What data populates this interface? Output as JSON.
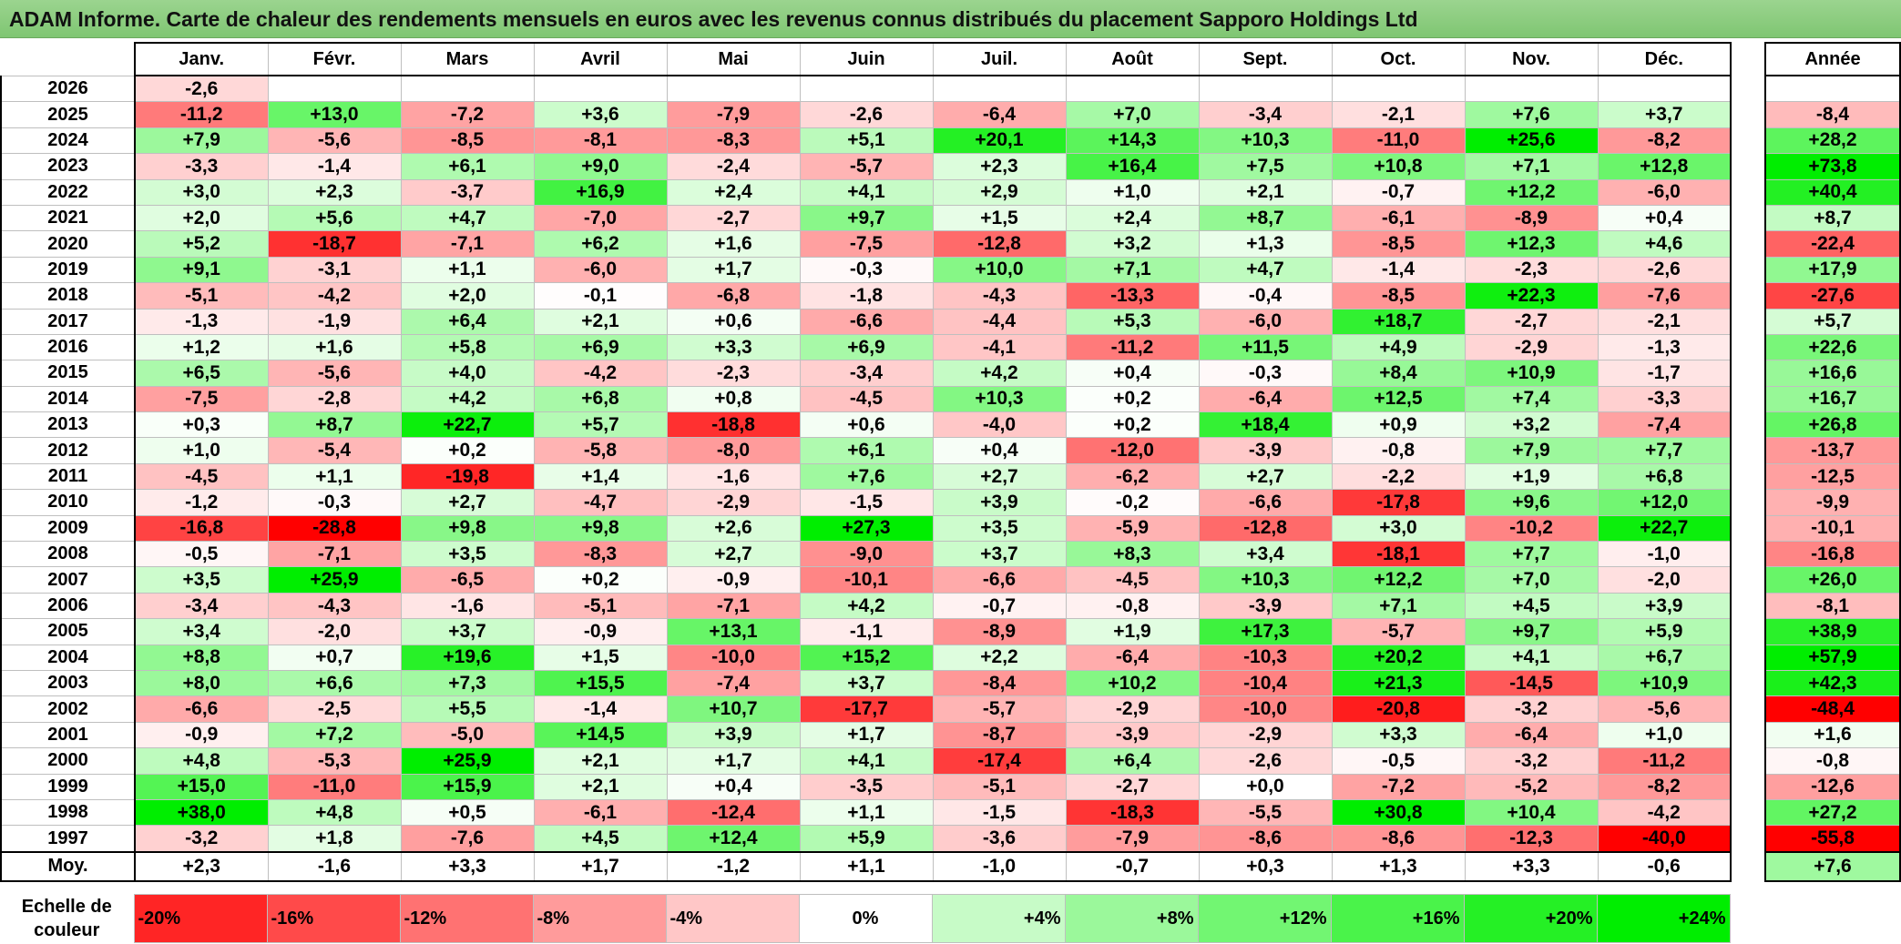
{
  "title": "ADAM Informe. Carte de chaleur des rendements mensuels en euros avec les revenus connus distribués du placement Sapporo Holdings Ltd",
  "chart_data": {
    "type": "heatmap",
    "title": "ADAM Informe. Carte de chaleur des rendements mensuels en euros avec les revenus connus distribués du placement Sapporo Holdings Ltd",
    "months": [
      "Janv.",
      "Févr.",
      "Mars",
      "Avril",
      "Mai",
      "Juin",
      "Juil.",
      "Août",
      "Sept.",
      "Oct.",
      "Nov.",
      "Déc."
    ],
    "year_header": "Année",
    "avg_label": "Moy.",
    "rows": [
      {
        "year": "2026",
        "months": [
          "-2,6",
          "",
          "",
          "",
          "",
          "",
          "",
          "",
          "",
          "",
          "",
          ""
        ],
        "annual": ""
      },
      {
        "year": "2025",
        "months": [
          "-11,2",
          "+13,0",
          "-7,2",
          "+3,6",
          "-7,9",
          "-2,6",
          "-6,4",
          "+7,0",
          "-3,4",
          "-2,1",
          "+7,6",
          "+3,7"
        ],
        "annual": "-8,4"
      },
      {
        "year": "2024",
        "months": [
          "+7,9",
          "-5,6",
          "-8,5",
          "-8,1",
          "-8,3",
          "+5,1",
          "+20,1",
          "+14,3",
          "+10,3",
          "-11,0",
          "+25,6",
          "-8,2"
        ],
        "annual": "+28,2"
      },
      {
        "year": "2023",
        "months": [
          "-3,3",
          "-1,4",
          "+6,1",
          "+9,0",
          "-2,4",
          "-5,7",
          "+2,3",
          "+16,4",
          "+7,5",
          "+10,8",
          "+7,1",
          "+12,8"
        ],
        "annual": "+73,8"
      },
      {
        "year": "2022",
        "months": [
          "+3,0",
          "+2,3",
          "-3,7",
          "+16,9",
          "+2,4",
          "+4,1",
          "+2,9",
          "+1,0",
          "+2,1",
          "-0,7",
          "+12,2",
          "-6,0"
        ],
        "annual": "+40,4"
      },
      {
        "year": "2021",
        "months": [
          "+2,0",
          "+5,6",
          "+4,7",
          "-7,0",
          "-2,7",
          "+9,7",
          "+1,5",
          "+2,4",
          "+8,7",
          "-6,1",
          "-8,9",
          "+0,4"
        ],
        "annual": "+8,7"
      },
      {
        "year": "2020",
        "months": [
          "+5,2",
          "-18,7",
          "-7,1",
          "+6,2",
          "+1,6",
          "-7,5",
          "-12,8",
          "+3,2",
          "+1,3",
          "-8,5",
          "+12,3",
          "+4,6"
        ],
        "annual": "-22,4"
      },
      {
        "year": "2019",
        "months": [
          "+9,1",
          "-3,1",
          "+1,1",
          "-6,0",
          "+1,7",
          "-0,3",
          "+10,0",
          "+7,1",
          "+4,7",
          "-1,4",
          "-2,3",
          "-2,6"
        ],
        "annual": "+17,9"
      },
      {
        "year": "2018",
        "months": [
          "-5,1",
          "-4,2",
          "+2,0",
          "-0,1",
          "-6,8",
          "-1,8",
          "-4,3",
          "-13,3",
          "-0,4",
          "-8,5",
          "+22,3",
          "-7,6"
        ],
        "annual": "-27,6"
      },
      {
        "year": "2017",
        "months": [
          "-1,3",
          "-1,9",
          "+6,4",
          "+2,1",
          "+0,6",
          "-6,6",
          "-4,4",
          "+5,3",
          "-6,0",
          "+18,7",
          "-2,7",
          "-2,1"
        ],
        "annual": "+5,7"
      },
      {
        "year": "2016",
        "months": [
          "+1,2",
          "+1,6",
          "+5,8",
          "+6,9",
          "+3,3",
          "+6,9",
          "-4,1",
          "-11,2",
          "+11,5",
          "+4,9",
          "-2,9",
          "-1,3"
        ],
        "annual": "+22,6"
      },
      {
        "year": "2015",
        "months": [
          "+6,5",
          "-5,6",
          "+4,0",
          "-4,2",
          "-2,3",
          "-3,4",
          "+4,2",
          "+0,4",
          "-0,3",
          "+8,4",
          "+10,9",
          "-1,7"
        ],
        "annual": "+16,6"
      },
      {
        "year": "2014",
        "months": [
          "-7,5",
          "-2,8",
          "+4,2",
          "+6,8",
          "+0,8",
          "-4,5",
          "+10,3",
          "+0,2",
          "-6,4",
          "+12,5",
          "+7,4",
          "-3,3"
        ],
        "annual": "+16,7"
      },
      {
        "year": "2013",
        "months": [
          "+0,3",
          "+8,7",
          "+22,7",
          "+5,7",
          "-18,8",
          "+0,6",
          "-4,0",
          "+0,2",
          "+18,4",
          "+0,9",
          "+3,2",
          "-7,4"
        ],
        "annual": "+26,8"
      },
      {
        "year": "2012",
        "months": [
          "+1,0",
          "-5,4",
          "+0,2",
          "-5,8",
          "-8,0",
          "+6,1",
          "+0,4",
          "-12,0",
          "-3,9",
          "-0,8",
          "+7,9",
          "+7,7"
        ],
        "annual": "-13,7"
      },
      {
        "year": "2011",
        "months": [
          "-4,5",
          "+1,1",
          "-19,8",
          "+1,4",
          "-1,6",
          "+7,6",
          "+2,7",
          "-6,2",
          "+2,7",
          "-2,2",
          "+1,9",
          "+6,8"
        ],
        "annual": "-12,5"
      },
      {
        "year": "2010",
        "months": [
          "-1,2",
          "-0,3",
          "+2,7",
          "-4,7",
          "-2,9",
          "-1,5",
          "+3,9",
          "-0,2",
          "-6,6",
          "-17,8",
          "+9,6",
          "+12,0"
        ],
        "annual": "-9,9"
      },
      {
        "year": "2009",
        "months": [
          "-16,8",
          "-28,8",
          "+9,8",
          "+9,8",
          "+2,6",
          "+27,3",
          "+3,5",
          "-5,9",
          "-12,8",
          "+3,0",
          "-10,2",
          "+22,7"
        ],
        "annual": "-10,1"
      },
      {
        "year": "2008",
        "months": [
          "-0,5",
          "-7,1",
          "+3,5",
          "-8,3",
          "+2,7",
          "-9,0",
          "+3,7",
          "+8,3",
          "+3,4",
          "-18,1",
          "+7,7",
          "-1,0"
        ],
        "annual": "-16,8"
      },
      {
        "year": "2007",
        "months": [
          "+3,5",
          "+25,9",
          "-6,5",
          "+0,2",
          "-0,9",
          "-10,1",
          "-6,6",
          "-4,5",
          "+10,3",
          "+12,2",
          "+7,0",
          "-2,0"
        ],
        "annual": "+26,0"
      },
      {
        "year": "2006",
        "months": [
          "-3,4",
          "-4,3",
          "-1,6",
          "-5,1",
          "-7,1",
          "+4,2",
          "-0,7",
          "-0,8",
          "-3,9",
          "+7,1",
          "+4,5",
          "+3,9"
        ],
        "annual": "-8,1"
      },
      {
        "year": "2005",
        "months": [
          "+3,4",
          "-2,0",
          "+3,7",
          "-0,9",
          "+13,1",
          "-1,1",
          "-8,9",
          "+1,9",
          "+17,3",
          "-5,7",
          "+9,7",
          "+5,9"
        ],
        "annual": "+38,9"
      },
      {
        "year": "2004",
        "months": [
          "+8,8",
          "+0,7",
          "+19,6",
          "+1,5",
          "-10,0",
          "+15,2",
          "+2,2",
          "-6,4",
          "-10,3",
          "+20,2",
          "+4,1",
          "+6,7"
        ],
        "annual": "+57,9"
      },
      {
        "year": "2003",
        "months": [
          "+8,0",
          "+6,6",
          "+7,3",
          "+15,5",
          "-7,4",
          "+3,7",
          "-8,4",
          "+10,2",
          "-10,4",
          "+21,3",
          "-14,5",
          "+10,9"
        ],
        "annual": "+42,3"
      },
      {
        "year": "2002",
        "months": [
          "-6,6",
          "-2,5",
          "+5,5",
          "-1,4",
          "+10,7",
          "-17,7",
          "-5,7",
          "-2,9",
          "-10,0",
          "-20,8",
          "-3,2",
          "-5,6"
        ],
        "annual": "-48,4"
      },
      {
        "year": "2001",
        "months": [
          "-0,9",
          "+7,2",
          "-5,0",
          "+14,5",
          "+3,9",
          "+1,7",
          "-8,7",
          "-3,9",
          "-2,9",
          "+3,3",
          "-6,4",
          "+1,0"
        ],
        "annual": "+1,6"
      },
      {
        "year": "2000",
        "months": [
          "+4,8",
          "-5,3",
          "+25,9",
          "+2,1",
          "+1,7",
          "+4,1",
          "-17,4",
          "+6,4",
          "-2,6",
          "-0,5",
          "-3,2",
          "-11,2"
        ],
        "annual": "-0,8"
      },
      {
        "year": "1999",
        "months": [
          "+15,0",
          "-11,0",
          "+15,9",
          "+2,1",
          "+0,4",
          "-3,5",
          "-5,1",
          "-2,7",
          "+0,0",
          "-7,2",
          "-5,2",
          "-8,2"
        ],
        "annual": "-12,6"
      },
      {
        "year": "1998",
        "months": [
          "+38,0",
          "+4,8",
          "+0,5",
          "-6,1",
          "-12,4",
          "+1,1",
          "-1,5",
          "-18,3",
          "-5,5",
          "+30,8",
          "+10,4",
          "-4,2"
        ],
        "annual": "+27,2"
      },
      {
        "year": "1997",
        "months": [
          "-3,2",
          "+1,8",
          "-7,6",
          "+4,5",
          "+12,4",
          "+5,9",
          "-3,6",
          "-7,9",
          "-8,6",
          "-8,6",
          "-12,3",
          "-40,0"
        ],
        "annual": "-55,8"
      }
    ],
    "averages": {
      "months": [
        "+2,3",
        "-1,6",
        "+3,3",
        "+1,7",
        "-1,2",
        "+1,1",
        "-1,0",
        "-0,7",
        "+0,3",
        "+1,3",
        "+3,3",
        "-0,6"
      ],
      "annual": "+7,6"
    },
    "scale": {
      "label": "Echelle de couleur",
      "steps": [
        "-20%",
        "-16%",
        "-12%",
        "-8%",
        "-4%",
        "0%",
        "+4%",
        "+8%",
        "+12%",
        "+16%",
        "+20%",
        "+24%"
      ]
    }
  },
  "colors": {
    "neg_strong": "#ff0000",
    "neutral": "#ffffff",
    "pos_strong": "#00ee00",
    "title_bg": "#8ccc7f"
  }
}
